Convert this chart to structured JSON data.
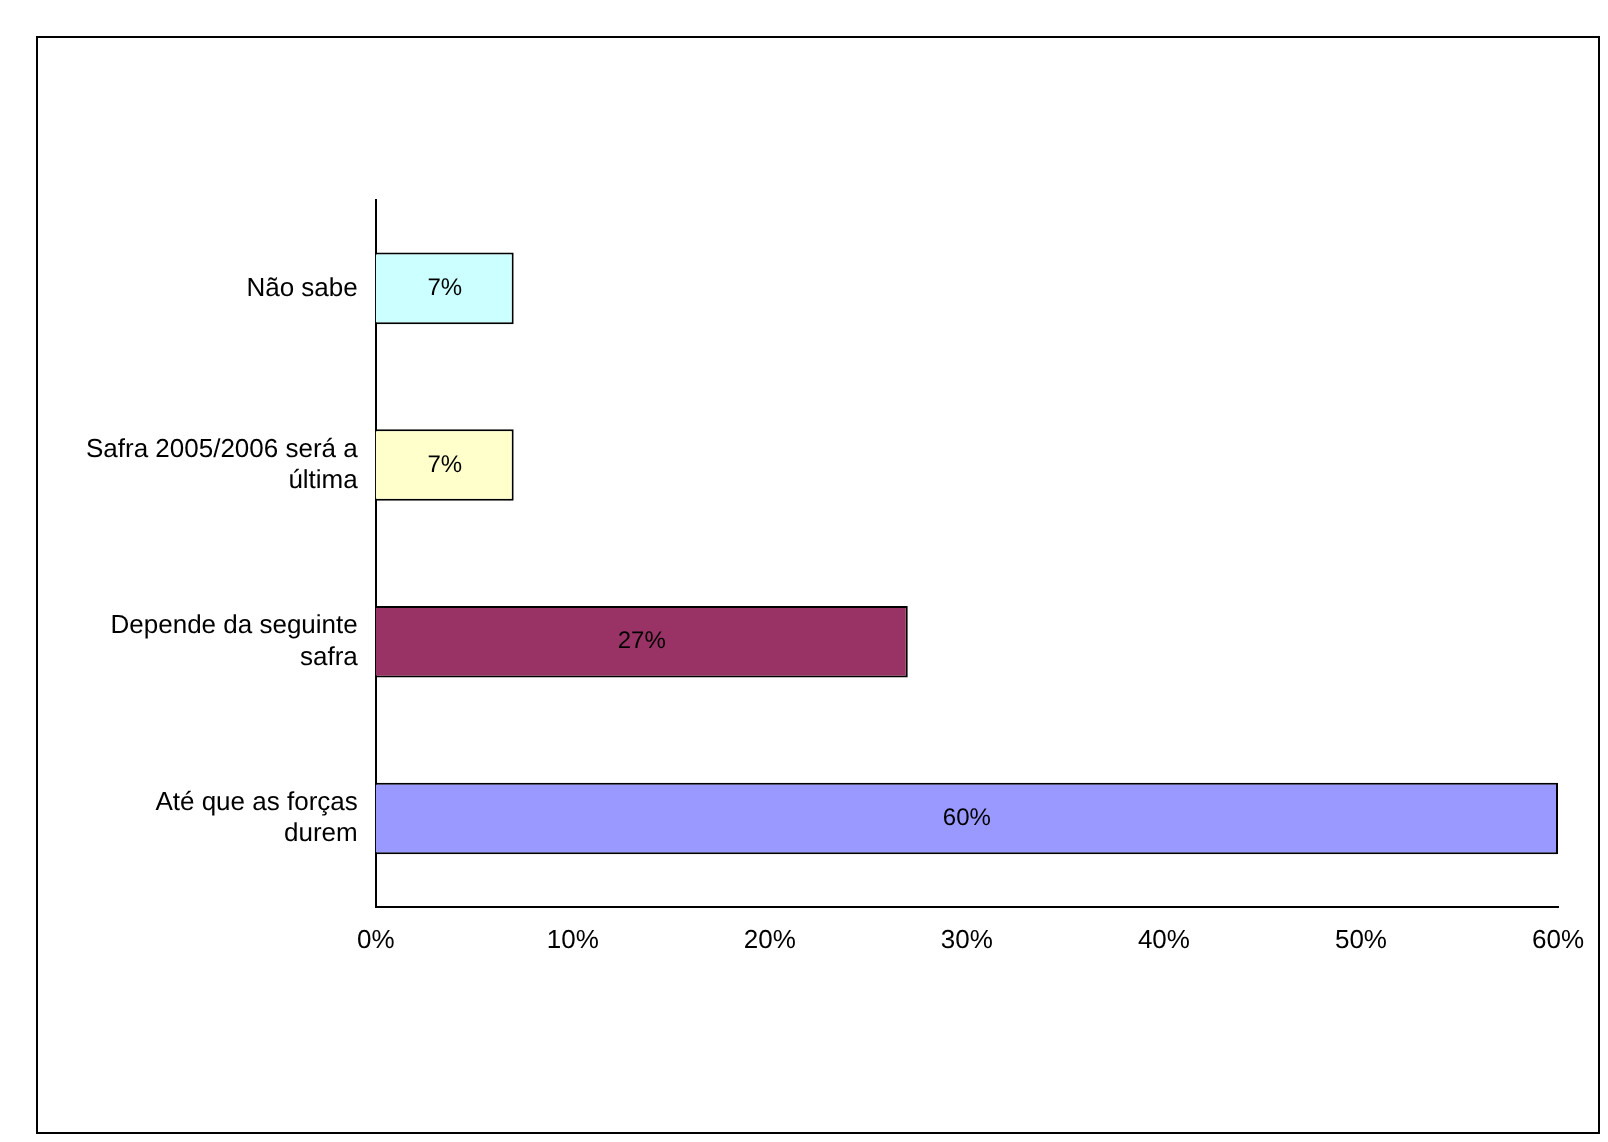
{
  "chart_data": {
    "type": "bar",
    "orientation": "horizontal",
    "categories": [
      "Não sabe",
      "Safra 2005/2006 será a última",
      "Depende da seguinte safra",
      "Até que as forças durem"
    ],
    "values": [
      7,
      7,
      27,
      60
    ],
    "colors": [
      "#ccffff",
      "#ffffcc",
      "#993366",
      "#9999ff"
    ],
    "value_labels": [
      "7%",
      "7%",
      "27%",
      "60%"
    ],
    "xlim": [
      0,
      60
    ],
    "xticks": [
      {
        "value": 0,
        "label": "0%"
      },
      {
        "value": 10,
        "label": "10%"
      },
      {
        "value": 20,
        "label": "20%"
      },
      {
        "value": 30,
        "label": "30%"
      },
      {
        "value": 40,
        "label": "40%"
      },
      {
        "value": 50,
        "label": "50%"
      },
      {
        "value": 60,
        "label": "60%"
      }
    ],
    "grid": false,
    "legend": false
  }
}
